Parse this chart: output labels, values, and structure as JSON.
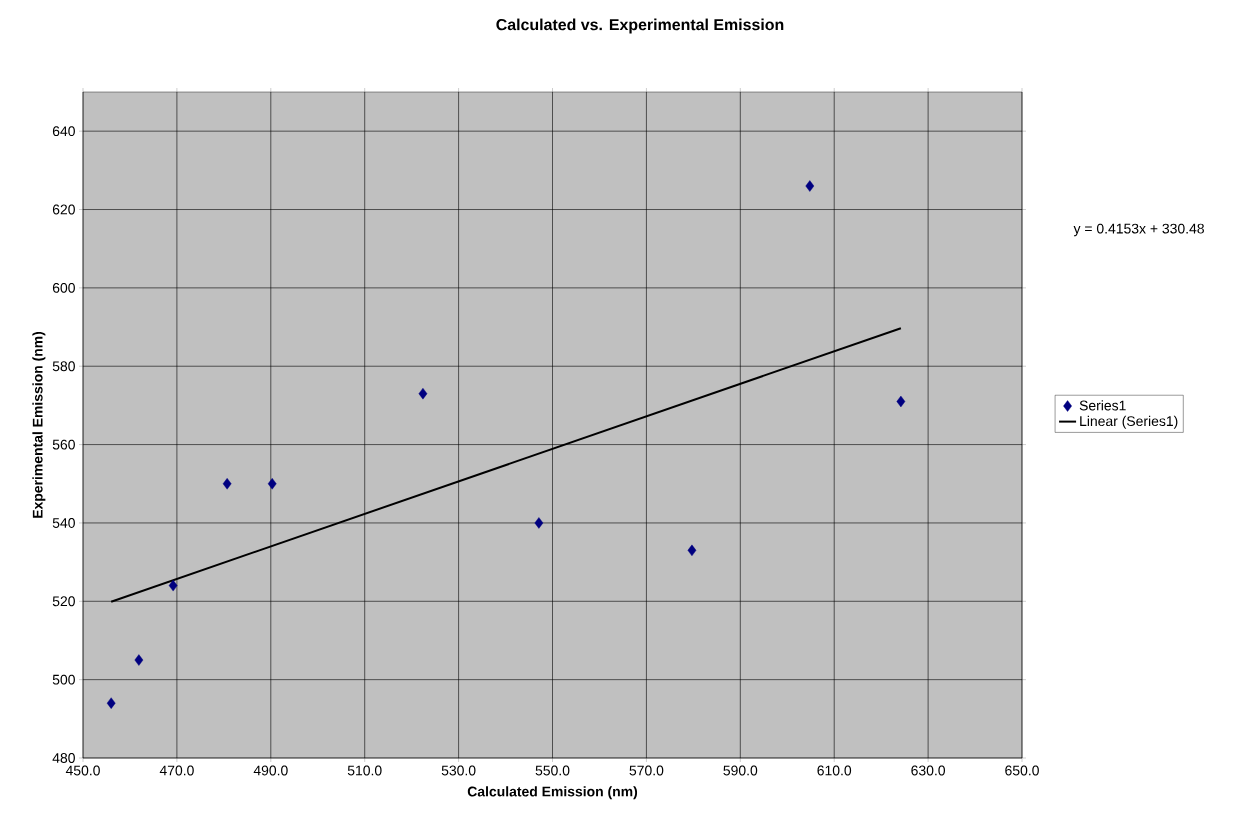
{
  "chart_data": {
    "type": "scatter",
    "title": "Calculated vs. Experimental Emission",
    "xlabel": "Calculated Emission (nm)",
    "ylabel": "Experimental Emission (nm)",
    "annotations": [
      "y = 0.4153x + 330.48"
    ],
    "xlim": [
      450,
      650
    ],
    "ylim": [
      480,
      650
    ],
    "xticks": [
      {
        "value": 450,
        "label": "450.0"
      },
      {
        "value": 470,
        "label": "470.0"
      },
      {
        "value": 490,
        "label": "490.0"
      },
      {
        "value": 510,
        "label": "510.0"
      },
      {
        "value": 530,
        "label": "530.0"
      },
      {
        "value": 550,
        "label": "550.0"
      },
      {
        "value": 570,
        "label": "570.0"
      },
      {
        "value": 590,
        "label": "590.0"
      },
      {
        "value": 610,
        "label": "610.0"
      },
      {
        "value": 630,
        "label": "630.0"
      },
      {
        "value": 650,
        "label": "650.0"
      }
    ],
    "yticks": [
      480,
      500,
      520,
      540,
      560,
      580,
      600,
      620,
      640
    ],
    "grid": true,
    "legend": "right",
    "marker": "diamond",
    "series": [
      {
        "name": "Series1",
        "color": "#000080",
        "x": [
          456.0,
          461.9,
          469.2,
          480.7,
          490.3,
          522.4,
          547.1,
          579.7,
          604.8,
          624.2
        ],
        "values": [
          494,
          505,
          524,
          550,
          550,
          573,
          540,
          533,
          626,
          571
        ]
      },
      {
        "name": "Linear (Series1)",
        "type": "line",
        "color": "#000000",
        "marker": "none",
        "x": [
          456.0,
          624.2
        ],
        "values": [
          519.9,
          589.7
        ]
      }
    ]
  }
}
